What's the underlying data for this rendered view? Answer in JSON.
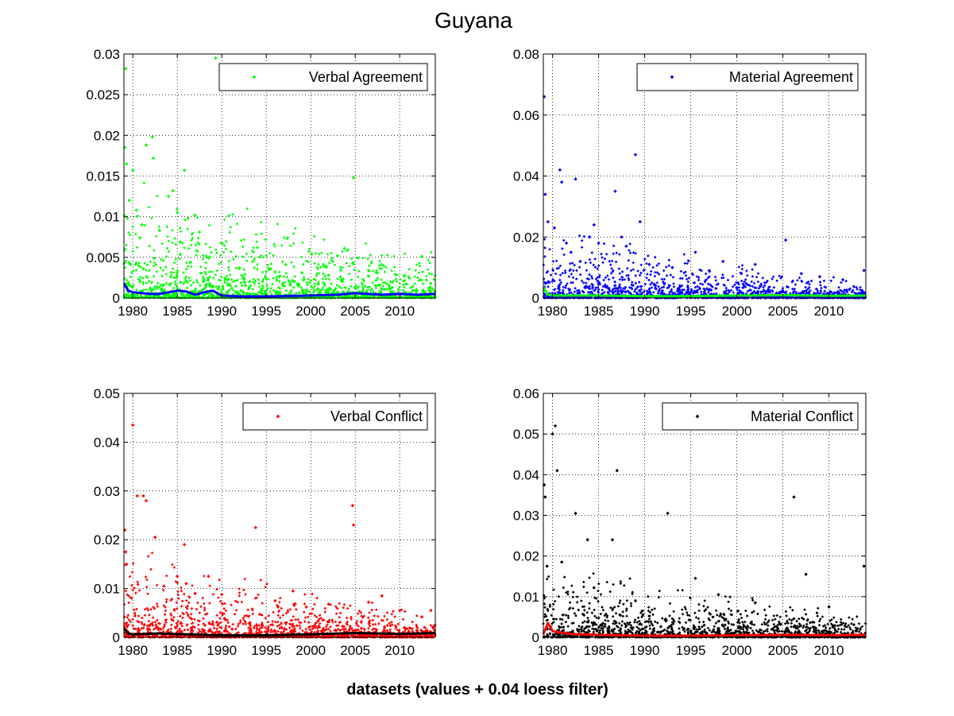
{
  "figure": {
    "title": "Guyana",
    "xlabel": "datasets (values + 0.04 loess filter)"
  },
  "chart_data": [
    {
      "type": "scatter",
      "legend": "Verbal Agreement",
      "legend_position": "top-right",
      "grid": true,
      "xlim": [
        1979,
        2014
      ],
      "ylim": [
        0,
        0.03
      ],
      "xticks": [
        1980,
        1985,
        1990,
        1995,
        2000,
        2005,
        2010
      ],
      "xtick_labels": [
        "1980",
        "1985",
        "1990",
        "1995",
        "2000",
        "2005",
        "2010"
      ],
      "yticks": [
        0,
        0.005,
        0.01,
        0.015,
        0.02,
        0.025,
        0.03
      ],
      "ytick_labels": [
        "0",
        "0.005",
        "0.01",
        "0.015",
        "0.02",
        "0.025",
        "0.03"
      ],
      "point_color": "#00ff00",
      "trend_color": "#0000ff",
      "points_x": [
        1979.1,
        1979.2,
        1979.3,
        1979.4,
        1979.6,
        1980.0,
        1980.4,
        1981.5,
        1982.2,
        1982.3,
        1981.0,
        1984.5,
        1984.0,
        1985.0,
        1985.8,
        1986.2,
        1987.0,
        1987.5,
        1989.3,
        1990.8,
        1993.5,
        1994.0,
        1995.5,
        1997.2,
        1999.0,
        2000.1,
        2001.5,
        2003.0,
        2003.8,
        2004.8,
        2005.3,
        2006.5,
        2008.0,
        2009.5,
        2011.0,
        2012.5,
        2013.5,
        1980.8,
        1983.0,
        1985.3,
        1988.5,
        1992.0,
        1996.0,
        2002.0,
        2007.5,
        2010.5,
        2013.0
      ],
      "points_y": [
        0.0185,
        0.0282,
        0.0165,
        0.0098,
        0.012,
        0.0157,
        0.0108,
        0.0188,
        0.0198,
        0.0172,
        0.009,
        0.0132,
        0.0125,
        0.0105,
        0.0157,
        0.0098,
        0.0102,
        0.0081,
        0.0295,
        0.0101,
        0.0045,
        0.0062,
        0.0036,
        0.0041,
        0.0031,
        0.0054,
        0.0039,
        0.0052,
        0.0061,
        0.0148,
        0.0049,
        0.0034,
        0.0041,
        0.0029,
        0.0026,
        0.0051,
        0.0018,
        0.0074,
        0.0083,
        0.0069,
        0.0049,
        0.0037,
        0.0032,
        0.0028,
        0.0031,
        0.0027,
        0.0022
      ],
      "trend_x": [
        1979,
        1979.5,
        1980,
        1981,
        1982,
        1983,
        1984,
        1985,
        1986,
        1987,
        1988,
        1989,
        1990,
        1992,
        1995,
        2000,
        2003,
        2005,
        2008,
        2010,
        2012,
        2014
      ],
      "trend_y": [
        0.0018,
        0.0009,
        0.0007,
        0.0006,
        0.0005,
        0.0005,
        0.0007,
        0.0009,
        0.0008,
        0.0004,
        0.0007,
        0.0009,
        0.0003,
        0.0002,
        0.0002,
        0.0003,
        0.0004,
        0.0006,
        0.0004,
        0.0005,
        0.0004,
        0.0005
      ]
    },
    {
      "type": "scatter",
      "legend": "Material Agreement",
      "legend_position": "top-right",
      "grid": true,
      "xlim": [
        1979,
        2014
      ],
      "ylim": [
        0,
        0.08
      ],
      "xticks": [
        1980,
        1985,
        1990,
        1995,
        2000,
        2005,
        2010
      ],
      "xtick_labels": [
        "1980",
        "1985",
        "1990",
        "1995",
        "2000",
        "2005",
        "2010"
      ],
      "yticks": [
        0,
        0.02,
        0.04,
        0.06,
        0.08
      ],
      "ytick_labels": [
        "0",
        "0.02",
        "0.04",
        "0.06",
        "0.08"
      ],
      "point_color": "#0000ff",
      "trend_color": "#00ff00",
      "points_x": [
        1979.1,
        1979.2,
        1979.5,
        1980.8,
        1981.0,
        1981.5,
        1982.5,
        1983.0,
        1984.5,
        1985.0,
        1986.8,
        1987.5,
        1989.0,
        1989.5,
        1990.5,
        1993.0,
        1995.5,
        1997.0,
        1998.5,
        2000.5,
        2002.0,
        2005.3,
        2007.0,
        2009.0,
        2011.5,
        2013.8,
        1980.2,
        1982.0,
        1984.0,
        1988.0
      ],
      "points_y": [
        0.066,
        0.034,
        0.025,
        0.042,
        0.038,
        0.018,
        0.039,
        0.012,
        0.024,
        0.018,
        0.035,
        0.02,
        0.047,
        0.025,
        0.011,
        0.01,
        0.015,
        0.009,
        0.012,
        0.008,
        0.011,
        0.019,
        0.008,
        0.007,
        0.006,
        0.009,
        0.023,
        0.015,
        0.02,
        0.017
      ],
      "trend_x": [
        1979,
        1979.5,
        1980,
        1985,
        1990,
        1995,
        2000,
        2005,
        2010,
        2014
      ],
      "trend_y": [
        0.0035,
        0.0012,
        0.0008,
        0.0008,
        0.0006,
        0.0006,
        0.0008,
        0.0009,
        0.0007,
        0.0008
      ]
    },
    {
      "type": "scatter",
      "legend": "Verbal Conflict",
      "legend_position": "top-right",
      "grid": true,
      "xlim": [
        1979,
        2014
      ],
      "ylim": [
        0,
        0.05
      ],
      "xticks": [
        1980,
        1985,
        1990,
        1995,
        2000,
        2005,
        2010
      ],
      "xtick_labels": [
        "1980",
        "1985",
        "1990",
        "1995",
        "2000",
        "2005",
        "2010"
      ],
      "yticks": [
        0,
        0.01,
        0.02,
        0.03,
        0.04,
        0.05
      ],
      "ytick_labels": [
        "0",
        "0.01",
        "0.02",
        "0.03",
        "0.04",
        "0.05"
      ],
      "point_color": "#ff0000",
      "trend_color": "#000000",
      "points_x": [
        1979.1,
        1979.2,
        1979.3,
        1980.0,
        1980.5,
        1981.2,
        1981.5,
        1982.5,
        1985.8,
        1986.0,
        1988.5,
        1993.8,
        1998.0,
        2004.7,
        2004.8,
        2008.0,
        2013.5,
        1983.5,
        1985.0,
        1987.0,
        1990.0,
        1996.0,
        1999.5,
        2002.0,
        2006.5,
        2010.0,
        2012.5
      ],
      "points_y": [
        0.022,
        0.0175,
        0.015,
        0.0435,
        0.029,
        0.029,
        0.028,
        0.0205,
        0.019,
        0.011,
        0.0125,
        0.0225,
        0.0095,
        0.027,
        0.023,
        0.0085,
        0.0055,
        0.0105,
        0.0125,
        0.009,
        0.0088,
        0.0075,
        0.0062,
        0.0068,
        0.0072,
        0.0055,
        0.0042
      ],
      "trend_x": [
        1979,
        1979.5,
        1980,
        1983,
        1986,
        1990,
        1995,
        2000,
        2005,
        2010,
        2014
      ],
      "trend_y": [
        0.0018,
        0.0008,
        0.0006,
        0.0008,
        0.0006,
        0.0004,
        0.0004,
        0.0006,
        0.0009,
        0.0007,
        0.0009
      ]
    },
    {
      "type": "scatter",
      "legend": "Material Conflict",
      "legend_position": "top-right",
      "grid": true,
      "xlim": [
        1979,
        2014
      ],
      "ylim": [
        0,
        0.06
      ],
      "xticks": [
        1980,
        1985,
        1990,
        1995,
        2000,
        2005,
        2010
      ],
      "xtick_labels": [
        "1980",
        "1985",
        "1990",
        "1995",
        "2000",
        "2005",
        "2010"
      ],
      "yticks": [
        0,
        0.01,
        0.02,
        0.03,
        0.04,
        0.05,
        0.06
      ],
      "ytick_labels": [
        "0",
        "0.01",
        "0.02",
        "0.03",
        "0.04",
        "0.05",
        "0.06"
      ],
      "point_color": "#000000",
      "trend_color": "#ff0000",
      "points_x": [
        1979.1,
        1979.2,
        1979.4,
        1980.0,
        1980.3,
        1980.5,
        1982.5,
        1983.8,
        1986.5,
        1987.0,
        1992.5,
        1995.5,
        2006.2,
        2013.8,
        1981.0,
        1984.5,
        1989.0,
        1998.0,
        2002.0,
        2007.5,
        2010.0
      ],
      "points_y": [
        0.0375,
        0.0345,
        0.0175,
        0.05,
        0.052,
        0.041,
        0.0305,
        0.024,
        0.024,
        0.041,
        0.0305,
        0.0145,
        0.0345,
        0.0175,
        0.0185,
        0.0122,
        0.009,
        0.0105,
        0.0085,
        0.0155,
        0.0075
      ],
      "trend_x": [
        1979,
        1979.5,
        1980,
        1982,
        1985,
        1990,
        1995,
        2000,
        2005,
        2010,
        2014
      ],
      "trend_y": [
        0.0008,
        0.0035,
        0.0015,
        0.0008,
        0.0006,
        0.0004,
        0.0004,
        0.0005,
        0.0006,
        0.0005,
        0.0006
      ]
    }
  ]
}
